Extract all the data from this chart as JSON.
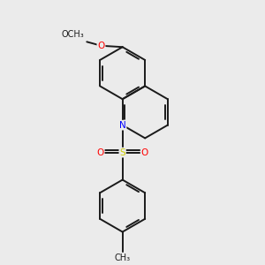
{
  "background_color": "#ebebeb",
  "bond_color": "#1a1a1a",
  "N_color": "#0000ff",
  "O_color": "#ff0000",
  "S_color": "#cccc00",
  "bond_width": 1.4,
  "font_size": 7.5,
  "figsize": [
    3.0,
    3.0
  ],
  "dpi": 100,
  "xlim": [
    0.0,
    5.0
  ],
  "ylim": [
    0.0,
    5.0
  ],
  "BL": 0.52
}
